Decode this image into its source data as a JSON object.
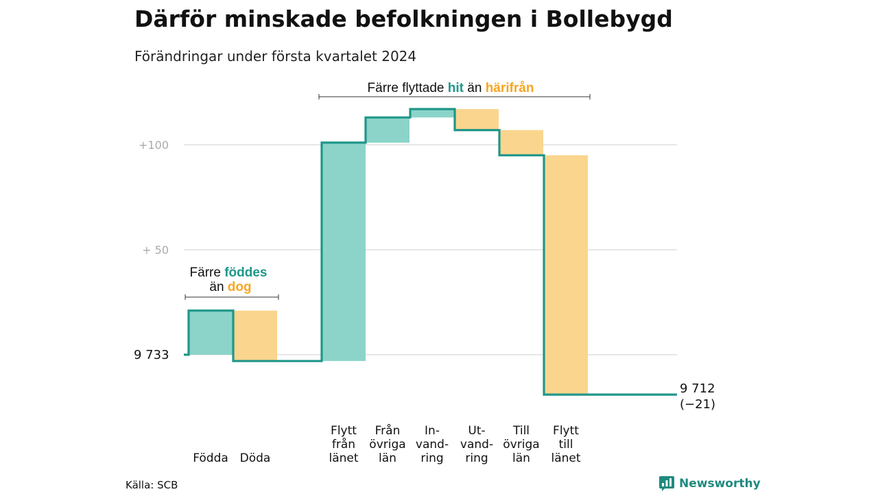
{
  "title": "Därför minskade befolkningen i Bollebygd",
  "subtitle": "Förändringar under första kvartalet 2024",
  "source": "Källa: SCB",
  "brand": "Newsworthy",
  "colors": {
    "line": "#1f968a",
    "in": "#8cd4c9",
    "out": "#fad58d",
    "in_text": "#1f968a",
    "out_text": "#f5a623",
    "grid": "#dddddd",
    "axis_text": "#aaaaaa"
  },
  "annotations": {
    "births": {
      "prefix": "Färre",
      "in_word": "föddes",
      "mid": "än",
      "out_word": "dog"
    },
    "moves": {
      "prefix": "Färre flyttade",
      "in_word": "hit",
      "mid": "än",
      "out_word": "härifrån"
    }
  },
  "chart_data": {
    "type": "waterfall",
    "title": "Därför minskade befolkningen i Bollebygd",
    "subtitle": "Förändringar under första kvartalet 2024",
    "start_value": 9733,
    "start_label": "9  733",
    "end_value": 9712,
    "end_label": "9 712",
    "end_change_label": "(−21)",
    "y_ticks": [
      {
        "value": 100,
        "label": "+100"
      },
      {
        "value": 50,
        "label": "+  50"
      }
    ],
    "y_range_relative": [
      -22,
      120
    ],
    "grid": true,
    "categories": [
      {
        "label": [
          "Födda"
        ],
        "value": 21,
        "kind": "in"
      },
      {
        "label": [
          "Döda"
        ],
        "value": -24,
        "kind": "out"
      },
      {
        "label": [
          "Flytt",
          "från",
          "länet"
        ],
        "value": 104,
        "kind": "in"
      },
      {
        "label": [
          "Från",
          "övriga",
          "län"
        ],
        "value": 12,
        "kind": "in"
      },
      {
        "label": [
          "In-",
          "vand-",
          "ring"
        ],
        "value": 4,
        "kind": "in"
      },
      {
        "label": [
          "Ut-",
          "vand-",
          "ring"
        ],
        "value": -10,
        "kind": "out"
      },
      {
        "label": [
          "Till",
          "övriga",
          "län"
        ],
        "value": -12,
        "kind": "out"
      },
      {
        "label": [
          "Flytt",
          "till",
          "länet"
        ],
        "value": -114,
        "kind": "out"
      }
    ]
  }
}
